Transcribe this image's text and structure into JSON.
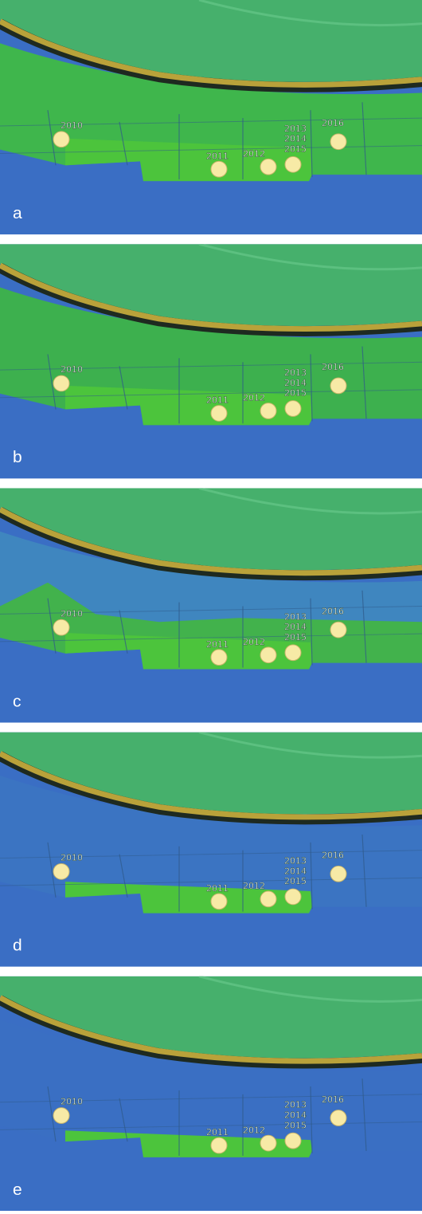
{
  "panels": [
    {
      "label": "a",
      "sites": [
        {
          "labels": [
            "2010"
          ]
        },
        {
          "labels": [
            "2011"
          ]
        },
        {
          "labels": [
            "2012"
          ]
        },
        {
          "labels": [
            "2013",
            "2014",
            "2015"
          ]
        },
        {
          "labels": [
            "2016"
          ]
        }
      ]
    },
    {
      "label": "b",
      "sites": [
        {
          "labels": [
            "2010"
          ]
        },
        {
          "labels": [
            "2011"
          ]
        },
        {
          "labels": [
            "2012"
          ]
        },
        {
          "labels": [
            "2013",
            "2014",
            "2015"
          ]
        },
        {
          "labels": [
            "2016"
          ]
        }
      ]
    },
    {
      "label": "c",
      "sites": [
        {
          "labels": [
            "2010"
          ]
        },
        {
          "labels": [
            "2011"
          ]
        },
        {
          "labels": [
            "2012"
          ]
        },
        {
          "labels": [
            "2013",
            "2014",
            "2015"
          ]
        },
        {
          "labels": [
            "2016"
          ]
        }
      ]
    },
    {
      "label": "d",
      "sites": [
        {
          "labels": [
            "2010"
          ]
        },
        {
          "labels": [
            "2011"
          ]
        },
        {
          "labels": [
            "2012"
          ]
        },
        {
          "labels": [
            "2013",
            "2014",
            "2015"
          ]
        },
        {
          "labels": [
            "2016"
          ]
        }
      ]
    },
    {
      "label": "e",
      "sites": [
        {
          "labels": [
            "2010"
          ]
        },
        {
          "labels": [
            "2011"
          ]
        },
        {
          "labels": [
            "2012"
          ]
        },
        {
          "labels": [
            "2013",
            "2014",
            "2015"
          ]
        },
        {
          "labels": [
            "2016"
          ]
        }
      ]
    }
  ]
}
